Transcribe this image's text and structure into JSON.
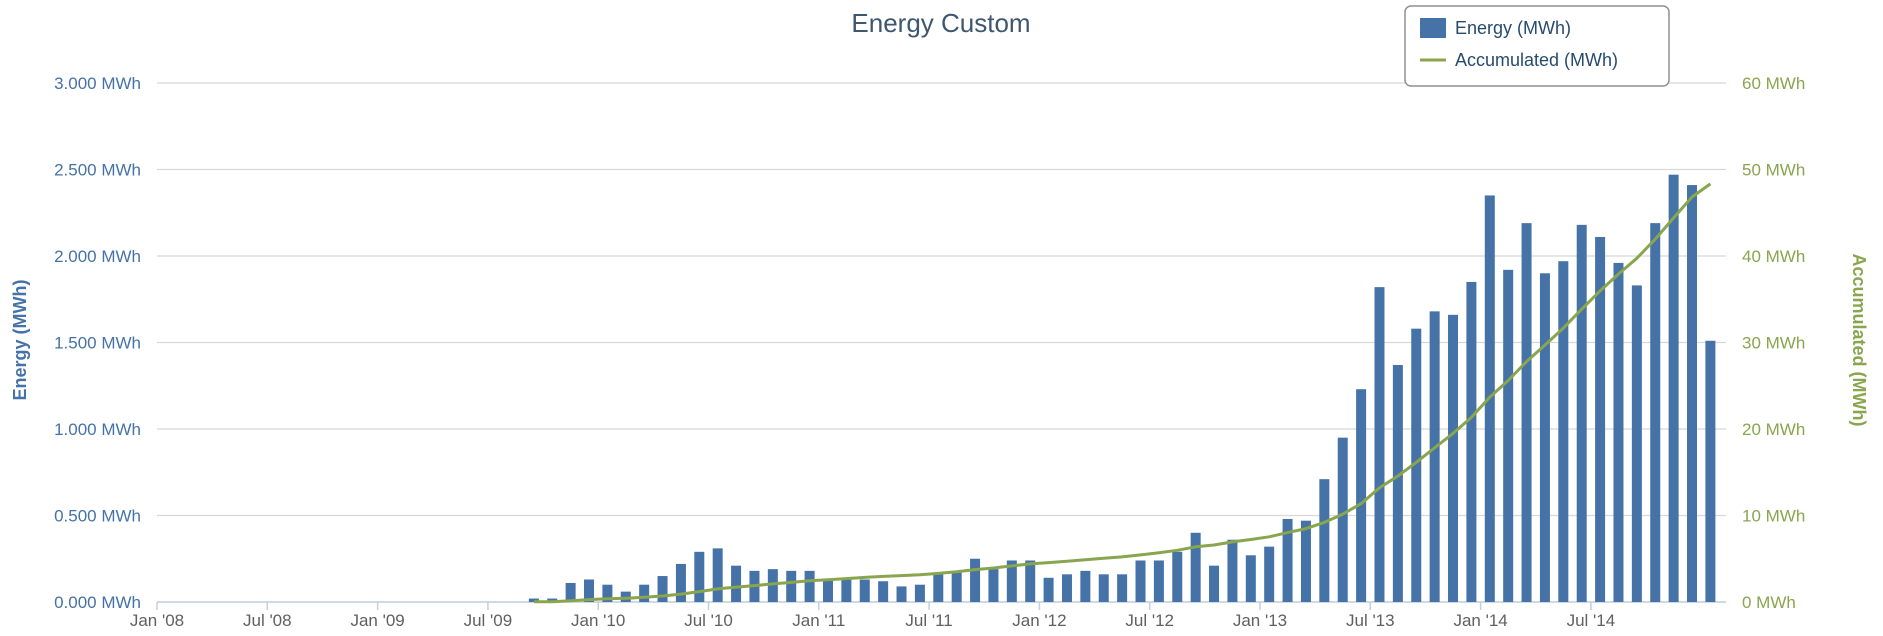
{
  "chart_data": {
    "type": "bar+line",
    "title": "Energy Custom",
    "yleft_label": "Energy (MWh)",
    "yright_label": "Accumulated (MWh)",
    "yleft_ticks": [
      "0.000 MWh",
      "0.500 MWh",
      "1.000 MWh",
      "1.500 MWh",
      "2.000 MWh",
      "2.500 MWh",
      "3.000 MWh"
    ],
    "yright_ticks": [
      "0 MWh",
      "10 MWh",
      "20 MWh",
      "30 MWh",
      "40 MWh",
      "50 MWh",
      "60 MWh"
    ],
    "yleft_range": [
      0,
      3
    ],
    "yright_range": [
      0,
      60
    ],
    "x_ticks": [
      "Jan '08",
      "Jul '08",
      "Jan '09",
      "Jul '09",
      "Jan '10",
      "Jul '10",
      "Jan '11",
      "Jul '11",
      "Jan '12",
      "Jul '12",
      "Jan '13",
      "Jul '13",
      "Jan '14",
      "Jul '14"
    ],
    "x_start": "Jan '08",
    "grid": true,
    "legend_position": "top-right",
    "series": [
      {
        "name": "Energy (MWh)",
        "type": "bar",
        "color": "#4572a7",
        "values": [
          0,
          0,
          0,
          0,
          0,
          0,
          0,
          0,
          0,
          0,
          0,
          0,
          0,
          0,
          0,
          0,
          0,
          0,
          0,
          0,
          0.02,
          0.02,
          0.11,
          0.13,
          0.1,
          0.06,
          0.1,
          0.15,
          0.22,
          0.29,
          0.31,
          0.21,
          0.18,
          0.19,
          0.18,
          0.18,
          0.13,
          0.13,
          0.13,
          0.12,
          0.09,
          0.1,
          0.16,
          0.18,
          0.25,
          0.19,
          0.24,
          0.24,
          0.14,
          0.16,
          0.18,
          0.16,
          0.16,
          0.24,
          0.24,
          0.29,
          0.4,
          0.21,
          0.36,
          0.27,
          0.32,
          0.48,
          0.47,
          0.71,
          0.95,
          1.23,
          1.82,
          1.37,
          1.58,
          1.68,
          1.66,
          1.85,
          2.35,
          1.92,
          2.19,
          1.9,
          1.97,
          2.18,
          2.11,
          1.96,
          1.83,
          2.19,
          2.47,
          2.41,
          1.51
        ]
      },
      {
        "name": "Accumulated (MWh)",
        "type": "line",
        "color": "#89a54e",
        "values": [
          0.02,
          0.04,
          0.15,
          0.28,
          0.38,
          0.44,
          0.54,
          0.69,
          0.91,
          1.2,
          1.51,
          1.72,
          1.9,
          2.09,
          2.27,
          2.45,
          2.58,
          2.71,
          2.84,
          2.96,
          3.05,
          3.15,
          3.31,
          3.49,
          3.74,
          3.93,
          4.17,
          4.41,
          4.55,
          4.71,
          4.89,
          5.05,
          5.21,
          5.45,
          5.69,
          5.98,
          6.38,
          6.59,
          6.95,
          7.22,
          7.54,
          8.02,
          8.49,
          9.2,
          10.15,
          11.38,
          13.2,
          14.57,
          16.15,
          17.83,
          19.49,
          21.34,
          23.69,
          25.61,
          27.8,
          29.7,
          31.67,
          33.85,
          35.96,
          37.92,
          39.75,
          41.94,
          44.41,
          46.82,
          48.33
        ]
      }
    ]
  }
}
